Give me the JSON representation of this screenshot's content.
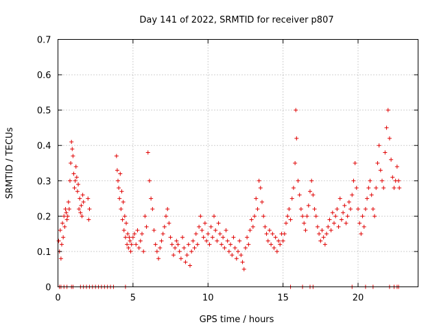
{
  "chart_data": {
    "type": "scatter",
    "title": "Day 141 of 2022, SRMTID for receiver p807",
    "xlabel": "GPS time / hours",
    "ylabel": "SRMTID / TECUs",
    "xlim": [
      0,
      24
    ],
    "ylim": [
      0,
      0.7
    ],
    "xticks": [
      0,
      5,
      10,
      15,
      20
    ],
    "yticks": [
      0,
      0.1,
      0.2,
      0.3,
      0.4,
      0.5,
      0.6,
      0.7
    ],
    "xtick_labels": [
      "0",
      "5",
      "10",
      "15",
      "20"
    ],
    "ytick_labels": [
      "0",
      "0.1",
      "0.2",
      "0.3",
      "0.4",
      "0.5",
      "0.6",
      "0.7"
    ],
    "grid": true,
    "marker": "+",
    "color": "#e00000",
    "series": [
      {
        "name": "SRMTID",
        "x": [
          0.05,
          0.1,
          0.15,
          0.2,
          0.25,
          0.3,
          0.35,
          0.4,
          0.45,
          0.5,
          0.55,
          0.6,
          0.65,
          0.7,
          0.75,
          0.8,
          0.85,
          0.9,
          0.95,
          1.0,
          1.05,
          1.1,
          1.15,
          1.2,
          1.25,
          1.3,
          1.35,
          1.4,
          1.45,
          1.5,
          1.55,
          1.6,
          1.65,
          1.7,
          2.0,
          2.05,
          2.1,
          3.9,
          3.95,
          4.0,
          4.05,
          4.1,
          4.15,
          4.2,
          4.25,
          4.3,
          4.35,
          4.4,
          4.45,
          4.5,
          4.55,
          4.6,
          4.65,
          4.7,
          4.75,
          4.8,
          4.85,
          4.9,
          5.0,
          5.1,
          5.2,
          5.3,
          5.4,
          5.5,
          5.6,
          5.7,
          5.8,
          5.9,
          6.0,
          6.1,
          6.2,
          6.3,
          6.4,
          6.5,
          6.6,
          6.7,
          6.8,
          6.9,
          7.0,
          7.1,
          7.2,
          7.3,
          7.4,
          7.5,
          7.6,
          7.7,
          7.8,
          7.9,
          8.0,
          8.1,
          8.2,
          8.3,
          8.4,
          8.5,
          8.6,
          8.7,
          8.8,
          8.9,
          9.0,
          9.1,
          9.2,
          9.3,
          9.4,
          9.5,
          9.6,
          9.7,
          9.8,
          9.9,
          10.0,
          10.1,
          10.2,
          10.3,
          10.4,
          10.5,
          10.6,
          10.7,
          10.8,
          10.9,
          11.0,
          11.1,
          11.2,
          11.3,
          11.4,
          11.5,
          11.6,
          11.7,
          11.8,
          11.9,
          12.0,
          12.1,
          12.2,
          12.3,
          12.4,
          12.5,
          12.6,
          12.7,
          12.8,
          12.9,
          13.0,
          13.1,
          13.2,
          13.3,
          13.4,
          13.5,
          13.6,
          13.7,
          13.8,
          13.9,
          14.0,
          14.1,
          14.2,
          14.3,
          14.4,
          14.5,
          14.6,
          14.7,
          14.8,
          14.9,
          15.0,
          15.1,
          15.2,
          15.3,
          15.4,
          15.5,
          15.6,
          15.7,
          15.8,
          15.85,
          15.9,
          16.0,
          16.1,
          16.2,
          16.3,
          16.4,
          16.5,
          16.6,
          16.7,
          16.8,
          16.9,
          17.0,
          17.1,
          17.2,
          17.3,
          17.4,
          17.5,
          17.6,
          17.7,
          17.8,
          17.9,
          18.0,
          18.1,
          18.2,
          18.3,
          18.4,
          18.5,
          18.6,
          18.7,
          18.8,
          18.9,
          19.0,
          19.1,
          19.2,
          19.3,
          19.4,
          19.5,
          19.6,
          19.7,
          19.8,
          19.9,
          20.0,
          20.1,
          20.2,
          20.3,
          20.4,
          20.5,
          20.6,
          20.7,
          20.8,
          20.9,
          21.0,
          21.1,
          21.2,
          21.3,
          21.4,
          21.5,
          21.6,
          21.7,
          21.8,
          21.9,
          22.0,
          22.1,
          22.2,
          22.3,
          22.4,
          22.5,
          22.6,
          22.7,
          22.75,
          0.1,
          0.2,
          0.4,
          0.6,
          0.9,
          1.0,
          1.5,
          1.7,
          1.9,
          2.1,
          2.3,
          2.5,
          2.7,
          2.9,
          3.1,
          3.3,
          3.5,
          3.7,
          4.5,
          15.5,
          16.3,
          16.8,
          17.0,
          19.6,
          20.5,
          21.0,
          22.1,
          22.4,
          22.6,
          22.7
        ],
        "y": [
          0.13,
          0.1,
          0.16,
          0.08,
          0.12,
          0.18,
          0.14,
          0.2,
          0.17,
          0.22,
          0.21,
          0.19,
          0.2,
          0.24,
          0.22,
          0.3,
          0.35,
          0.41,
          0.39,
          0.37,
          0.32,
          0.28,
          0.3,
          0.34,
          0.31,
          0.27,
          0.29,
          0.22,
          0.25,
          0.21,
          0.23,
          0.2,
          0.26,
          0.24,
          0.25,
          0.19,
          0.22,
          0.37,
          0.33,
          0.3,
          0.28,
          0.25,
          0.32,
          0.22,
          0.27,
          0.19,
          0.24,
          0.16,
          0.2,
          0.14,
          0.18,
          0.12,
          0.15,
          0.11,
          0.14,
          0.13,
          0.1,
          0.12,
          0.14,
          0.15,
          0.12,
          0.16,
          0.11,
          0.13,
          0.15,
          0.1,
          0.2,
          0.17,
          0.38,
          0.3,
          0.25,
          0.22,
          0.16,
          0.12,
          0.1,
          0.08,
          0.11,
          0.13,
          0.15,
          0.17,
          0.2,
          0.22,
          0.18,
          0.14,
          0.12,
          0.09,
          0.11,
          0.13,
          0.12,
          0.1,
          0.08,
          0.14,
          0.11,
          0.07,
          0.09,
          0.12,
          0.06,
          0.1,
          0.13,
          0.11,
          0.15,
          0.12,
          0.17,
          0.2,
          0.16,
          0.14,
          0.18,
          0.13,
          0.15,
          0.12,
          0.17,
          0.14,
          0.2,
          0.16,
          0.13,
          0.18,
          0.15,
          0.12,
          0.14,
          0.11,
          0.16,
          0.13,
          0.1,
          0.12,
          0.09,
          0.14,
          0.11,
          0.08,
          0.1,
          0.13,
          0.09,
          0.07,
          0.05,
          0.11,
          0.14,
          0.12,
          0.16,
          0.19,
          0.17,
          0.2,
          0.25,
          0.22,
          0.3,
          0.28,
          0.24,
          0.2,
          0.17,
          0.15,
          0.13,
          0.16,
          0.12,
          0.15,
          0.11,
          0.14,
          0.1,
          0.13,
          0.12,
          0.15,
          0.13,
          0.15,
          0.18,
          0.2,
          0.22,
          0.19,
          0.25,
          0.28,
          0.35,
          0.5,
          0.42,
          0.3,
          0.26,
          0.22,
          0.2,
          0.18,
          0.16,
          0.2,
          0.23,
          0.27,
          0.3,
          0.26,
          0.22,
          0.2,
          0.17,
          0.15,
          0.13,
          0.16,
          0.14,
          0.12,
          0.15,
          0.17,
          0.19,
          0.16,
          0.21,
          0.18,
          0.2,
          0.22,
          0.17,
          0.25,
          0.19,
          0.21,
          0.23,
          0.18,
          0.2,
          0.24,
          0.22,
          0.26,
          0.3,
          0.35,
          0.28,
          0.22,
          0.18,
          0.15,
          0.2,
          0.17,
          0.22,
          0.25,
          0.28,
          0.3,
          0.26,
          0.22,
          0.2,
          0.28,
          0.35,
          0.4,
          0.33,
          0.3,
          0.28,
          0.38,
          0.45,
          0.5,
          0.42,
          0.36,
          0.31,
          0.28,
          0.3,
          0.34,
          0.3,
          0.28,
          0,
          0,
          0,
          0,
          0,
          0,
          0,
          0,
          0,
          0,
          0,
          0,
          0,
          0,
          0,
          0,
          0,
          0,
          0,
          0,
          0,
          0,
          0,
          0,
          0,
          0,
          0,
          0,
          0,
          0
        ]
      }
    ]
  }
}
